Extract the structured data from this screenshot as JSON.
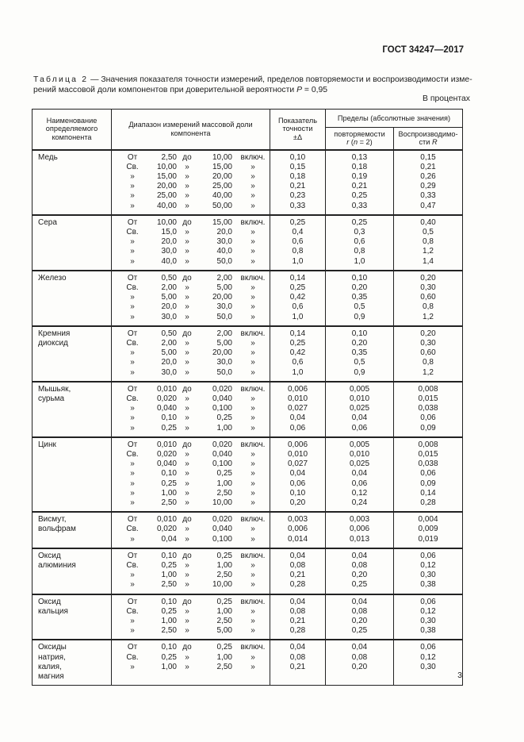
{
  "page": {
    "doc_number": "ГОСТ 34247—2017",
    "unit_note": "В процентах",
    "page_number": "3"
  },
  "caption": {
    "label": "Таблица 2",
    "line1_rest": "— Значения показателя точности измерений, пределов повторяемости и воспроизводимости изме-",
    "line2_pre": "рений массовой доли компонентов при доверительной вероятности ",
    "p_italic": "P",
    "line2_post": " = 0,95"
  },
  "table": {
    "headers": {
      "component": "Наименование определяемого компонента",
      "range": "Диапазон измерений массовой доли компонента",
      "accuracy_line1": "Показатель",
      "accuracy_line2": "точности",
      "accuracy_line3": "±Δ",
      "limits_group": "Пределы (абсолютные значения)",
      "repeat_line1": "повторяемости",
      "repeat_r": "r",
      "repeat_mid": " (",
      "repeat_n": "n",
      "repeat_end": " = 2)",
      "reprod_line1": "Воспроизводимо-",
      "reprod_pre": "сти ",
      "reprod_R": "R"
    },
    "components": [
      {
        "name_lines": [
          "Медь"
        ],
        "rows": [
          {
            "p": "От",
            "v1": "2,50",
            "m": "до",
            "v2": "10,00",
            "s": "включ.",
            "d": "0,10",
            "r": "0,13",
            "R": "0,15"
          },
          {
            "p": "Св.",
            "v1": "10,00",
            "m": "»",
            "v2": "15,00",
            "s": "»",
            "d": "0,15",
            "r": "0,18",
            "R": "0,21"
          },
          {
            "p": "»",
            "v1": "15,00",
            "m": "»",
            "v2": "20,00",
            "s": "»",
            "d": "0,18",
            "r": "0,19",
            "R": "0,26"
          },
          {
            "p": "»",
            "v1": "20,00",
            "m": "»",
            "v2": "25,00",
            "s": "»",
            "d": "0,21",
            "r": "0,21",
            "R": "0,29"
          },
          {
            "p": "»",
            "v1": "25,00",
            "m": "»",
            "v2": "40,00",
            "s": "»",
            "d": "0,23",
            "r": "0,25",
            "R": "0,33"
          },
          {
            "p": "»",
            "v1": "40,00",
            "m": "»",
            "v2": "50,00",
            "s": "»",
            "d": "0,33",
            "r": "0,33",
            "R": "0,47"
          }
        ]
      },
      {
        "name_lines": [
          "Сера"
        ],
        "rows": [
          {
            "p": "От",
            "v1": "10,00",
            "m": "до",
            "v2": "15,00",
            "s": "включ.",
            "d": "0,25",
            "r": "0,25",
            "R": "0,40"
          },
          {
            "p": "Св.",
            "v1": "15,0",
            "m": "»",
            "v2": "20,0",
            "s": "»",
            "d": "0,4",
            "r": "0,3",
            "R": "0,5"
          },
          {
            "p": "»",
            "v1": "20,0",
            "m": "»",
            "v2": "30,0",
            "s": "»",
            "d": "0,6",
            "r": "0,6",
            "R": "0,8"
          },
          {
            "p": "»",
            "v1": "30,0",
            "m": "»",
            "v2": "40,0",
            "s": "»",
            "d": "0,8",
            "r": "0,8",
            "R": "1,2"
          },
          {
            "p": "»",
            "v1": "40,0",
            "m": "»",
            "v2": "50,0",
            "s": "»",
            "d": "1,0",
            "r": "1,0",
            "R": "1,4"
          }
        ]
      },
      {
        "name_lines": [
          "Железо"
        ],
        "rows": [
          {
            "p": "От",
            "v1": "0,50",
            "m": "до",
            "v2": "2,00",
            "s": "включ.",
            "d": "0,14",
            "r": "0,10",
            "R": "0,20"
          },
          {
            "p": "Св.",
            "v1": "2,00",
            "m": "»",
            "v2": "5,00",
            "s": "»",
            "d": "0,25",
            "r": "0,20",
            "R": "0,30"
          },
          {
            "p": "»",
            "v1": "5,00",
            "m": "»",
            "v2": "20,00",
            "s": "»",
            "d": "0,42",
            "r": "0,35",
            "R": "0,60"
          },
          {
            "p": "»",
            "v1": "20,0",
            "m": "»",
            "v2": "30,0",
            "s": "»",
            "d": "0,6",
            "r": "0,5",
            "R": "0,8"
          },
          {
            "p": "»",
            "v1": "30,0",
            "m": "»",
            "v2": "50,0",
            "s": "»",
            "d": "1,0",
            "r": "0,9",
            "R": "1,2"
          }
        ]
      },
      {
        "name_lines": [
          "Кремния",
          "диоксид"
        ],
        "rows": [
          {
            "p": "От",
            "v1": "0,50",
            "m": "до",
            "v2": "2,00",
            "s": "включ.",
            "d": "0,14",
            "r": "0,10",
            "R": "0,20"
          },
          {
            "p": "Св.",
            "v1": "2,00",
            "m": "»",
            "v2": "5,00",
            "s": "»",
            "d": "0,25",
            "r": "0,20",
            "R": "0,30"
          },
          {
            "p": "»",
            "v1": "5,00",
            "m": "»",
            "v2": "20,00",
            "s": "»",
            "d": "0,42",
            "r": "0,35",
            "R": "0,60"
          },
          {
            "p": "»",
            "v1": "20,0",
            "m": "»",
            "v2": "30,0",
            "s": "»",
            "d": "0,6",
            "r": "0,5",
            "R": "0,8"
          },
          {
            "p": "»",
            "v1": "30,0",
            "m": "»",
            "v2": "50,0",
            "s": "»",
            "d": "1,0",
            "r": "0,9",
            "R": "1,2"
          }
        ]
      },
      {
        "name_lines": [
          "Мышьяк,",
          "сурьма"
        ],
        "rows": [
          {
            "p": "От",
            "v1": "0,010",
            "m": "до",
            "v2": "0,020",
            "s": "включ.",
            "d": "0,006",
            "r": "0,005",
            "R": "0,008"
          },
          {
            "p": "Св.",
            "v1": "0,020",
            "m": "»",
            "v2": "0,040",
            "s": "»",
            "d": "0,010",
            "r": "0,010",
            "R": "0,015"
          },
          {
            "p": "»",
            "v1": "0,040",
            "m": "»",
            "v2": "0,100",
            "s": "»",
            "d": "0,027",
            "r": "0,025",
            "R": "0,038"
          },
          {
            "p": "»",
            "v1": "0,10",
            "m": "»",
            "v2": "0,25",
            "s": "»",
            "d": "0,04",
            "r": "0,04",
            "R": "0,06"
          },
          {
            "p": "»",
            "v1": "0,25",
            "m": "»",
            "v2": "1,00",
            "s": "»",
            "d": "0,06",
            "r": "0,06",
            "R": "0,09"
          }
        ]
      },
      {
        "name_lines": [
          "Цинк"
        ],
        "rows": [
          {
            "p": "От",
            "v1": "0,010",
            "m": "до",
            "v2": "0,020",
            "s": "включ.",
            "d": "0,006",
            "r": "0,005",
            "R": "0,008"
          },
          {
            "p": "Св.",
            "v1": "0,020",
            "m": "»",
            "v2": "0,040",
            "s": "»",
            "d": "0,010",
            "r": "0,010",
            "R": "0,015"
          },
          {
            "p": "»",
            "v1": "0,040",
            "m": "»",
            "v2": "0,100",
            "s": "»",
            "d": "0,027",
            "r": "0,025",
            "R": "0,038"
          },
          {
            "p": "»",
            "v1": "0,10",
            "m": "»",
            "v2": "0,25",
            "s": "»",
            "d": "0,04",
            "r": "0,04",
            "R": "0,06"
          },
          {
            "p": "»",
            "v1": "0,25",
            "m": "»",
            "v2": "1,00",
            "s": "»",
            "d": "0,06",
            "r": "0,06",
            "R": "0,09"
          },
          {
            "p": "»",
            "v1": "1,00",
            "m": "»",
            "v2": "2,50",
            "s": "»",
            "d": "0,10",
            "r": "0,12",
            "R": "0,14"
          },
          {
            "p": "»",
            "v1": "2,50",
            "m": "»",
            "v2": "10,00",
            "s": "»",
            "d": "0,20",
            "r": "0,24",
            "R": "0,28"
          }
        ]
      },
      {
        "name_lines": [
          "Висмут,",
          "вольфрам"
        ],
        "rows": [
          {
            "p": "От",
            "v1": "0,010",
            "m": "до",
            "v2": "0,020",
            "s": "включ.",
            "d": "0,003",
            "r": "0,003",
            "R": "0,004"
          },
          {
            "p": "Св.",
            "v1": "0,020",
            "m": "»",
            "v2": "0,040",
            "s": "»",
            "d": "0,006",
            "r": "0,006",
            "R": "0,009"
          },
          {
            "p": "»",
            "v1": "0,04",
            "m": "»",
            "v2": "0,100",
            "s": "»",
            "d": "0,014",
            "r": "0,013",
            "R": "0,019"
          }
        ]
      },
      {
        "name_lines": [
          "Оксид",
          "алюминия"
        ],
        "rows": [
          {
            "p": "От",
            "v1": "0,10",
            "m": "до",
            "v2": "0,25",
            "s": "включ.",
            "d": "0,04",
            "r": "0,04",
            "R": "0,06"
          },
          {
            "p": "Св.",
            "v1": "0,25",
            "m": "»",
            "v2": "1,00",
            "s": "»",
            "d": "0,08",
            "r": "0,08",
            "R": "0,12"
          },
          {
            "p": "»",
            "v1": "1,00",
            "m": "»",
            "v2": "2,50",
            "s": "»",
            "d": "0,21",
            "r": "0,20",
            "R": "0,30"
          },
          {
            "p": "»",
            "v1": "2,50",
            "m": "»",
            "v2": "10,00",
            "s": "»",
            "d": "0,28",
            "r": "0,25",
            "R": "0,38"
          }
        ]
      },
      {
        "name_lines": [
          "Оксид",
          "кальция"
        ],
        "rows": [
          {
            "p": "От",
            "v1": "0,10",
            "m": "до",
            "v2": "0,25",
            "s": "включ.",
            "d": "0,04",
            "r": "0,04",
            "R": "0,06"
          },
          {
            "p": "Св.",
            "v1": "0,25",
            "m": "»",
            "v2": "1,00",
            "s": "»",
            "d": "0,08",
            "r": "0,08",
            "R": "0,12"
          },
          {
            "p": "»",
            "v1": "1,00",
            "m": "»",
            "v2": "2,50",
            "s": "»",
            "d": "0,21",
            "r": "0,20",
            "R": "0,30"
          },
          {
            "p": "»",
            "v1": "2,50",
            "m": "»",
            "v2": "5,00",
            "s": "»",
            "d": "0,28",
            "r": "0,25",
            "R": "0,38"
          }
        ]
      },
      {
        "name_lines": [
          "Оксиды",
          "натрия,",
          "калия,",
          "магния"
        ],
        "rows": [
          {
            "p": "От",
            "v1": "0,10",
            "m": "до",
            "v2": "0,25",
            "s": "включ.",
            "d": "0,04",
            "r": "0,04",
            "R": "0,06"
          },
          {
            "p": "Св.",
            "v1": "0,25",
            "m": "»",
            "v2": "1,00",
            "s": "»",
            "d": "0,08",
            "r": "0,08",
            "R": "0,12"
          },
          {
            "p": "»",
            "v1": "1,00",
            "m": "»",
            "v2": "2,50",
            "s": "»",
            "d": "0,21",
            "r": "0,20",
            "R": "0,30"
          }
        ]
      }
    ]
  }
}
